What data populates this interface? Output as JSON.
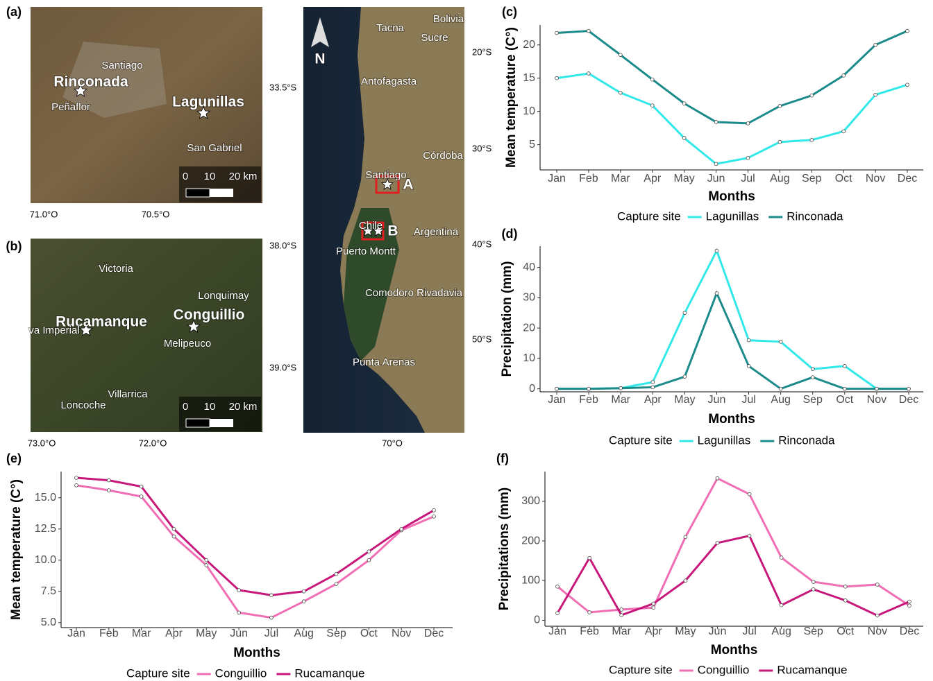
{
  "panel_labels": [
    "(a)",
    "(b)",
    "(c)",
    "(d)",
    "(e)",
    "(f)"
  ],
  "maps": [
    {
      "labels": [
        "Santiago",
        "Rinconada",
        "Peñaflor",
        "Lagunillas",
        "San Gabriel",
        "0",
        "10",
        "20 km",
        "33.5°S",
        "71.0°O",
        "70.5°O"
      ]
    },
    {
      "labels": [
        "Victoria",
        "Lonquimay",
        "Rucamanque",
        "Conguillio",
        "va Imperial",
        "Melipeuco",
        "Villarrica",
        "Loncoche",
        "0",
        "10",
        "20 km",
        "38.0°S",
        "39.0°S",
        "73.0°O",
        "72.0°O"
      ]
    },
    {
      "labels": [
        "Bolivia",
        "Tacna",
        "Sucre",
        "Antofagasta",
        "Córdoba",
        "Santiago",
        "A",
        "Chile",
        "B",
        "Argentina",
        "Puerto Montt",
        "Comodoro Rivadavia",
        "Punta Arenas",
        "N",
        "20°S",
        "30°S",
        "40°S",
        "50°S",
        "70°O"
      ]
    }
  ],
  "chart_data": [
    {
      "type": "line",
      "x_label": "Months",
      "y_label": "Mean temperature (C°)",
      "legend_title": "Capture site",
      "categories": [
        "Jan",
        "Feb",
        "Mar",
        "Apr",
        "May",
        "Jun",
        "Jul",
        "Aug",
        "Sep",
        "Oct",
        "Nov",
        "Dec"
      ],
      "series": [
        {
          "name": "Lagunillas",
          "color": "#33e8e8",
          "values": [
            15,
            15.7,
            12.8,
            10.9,
            6,
            2.1,
            3,
            5.4,
            5.7,
            7,
            12.5,
            14
          ]
        },
        {
          "name": "Rinconada",
          "color": "#1a8a8a",
          "values": [
            21.8,
            22.1,
            18.5,
            14.8,
            11.2,
            8.4,
            8.2,
            10.8,
            12.4,
            15.4,
            20,
            22.1
          ]
        }
      ],
      "ylim": [
        1.2,
        23
      ],
      "yticks": [
        5,
        10,
        15,
        20
      ]
    },
    {
      "type": "line",
      "x_label": "Months",
      "y_label": "Precipitation (mm)",
      "legend_title": "Capture site",
      "categories": [
        "Jan",
        "Feb",
        "Mar",
        "Apr",
        "May",
        "Jun",
        "Jul",
        "Aug",
        "Sep",
        "Oct",
        "Nov",
        "Dec"
      ],
      "series": [
        {
          "name": "Lagunillas",
          "color": "#33e8e8",
          "values": [
            0,
            0,
            0.2,
            2.2,
            25,
            45.5,
            16,
            15.5,
            6.5,
            7.5,
            0,
            0
          ]
        },
        {
          "name": "Rinconada",
          "color": "#1a8a8a",
          "values": [
            0,
            0,
            0.2,
            0.5,
            4,
            31.5,
            7.5,
            0,
            3.8,
            0,
            0,
            0
          ]
        }
      ],
      "ylim": [
        -1,
        47
      ],
      "yticks": [
        0,
        10,
        20,
        30,
        40
      ]
    },
    {
      "type": "line",
      "x_label": "Months",
      "y_label": "Mean temperature (C°)",
      "legend_title": "Capture site",
      "categories": [
        "Jan",
        "Feb",
        "Mar",
        "Apr",
        "May",
        "Jun",
        "Jul",
        "Aug",
        "Sep",
        "Oct",
        "Nov",
        "Dec"
      ],
      "series": [
        {
          "name": "Conguillio",
          "color": "#f06eb4",
          "values": [
            16.0,
            15.6,
            15.1,
            11.9,
            9.6,
            5.8,
            5.4,
            6.7,
            8.1,
            10.0,
            12.4,
            13.5
          ]
        },
        {
          "name": "Rucamanque",
          "color": "#c8177a",
          "values": [
            16.6,
            16.4,
            15.9,
            12.5,
            10.0,
            7.6,
            7.2,
            7.5,
            8.9,
            10.7,
            12.5,
            14.0
          ]
        }
      ],
      "ylim": [
        4.6,
        17.1
      ],
      "yticks": [
        {
          "value": 5,
          "label": "5.0"
        },
        {
          "value": 7.5,
          "label": "7.5"
        },
        {
          "value": 10,
          "label": "10.0"
        },
        {
          "value": 12.5,
          "label": "12.5"
        },
        {
          "value": 15,
          "label": "15.0"
        }
      ]
    },
    {
      "type": "line",
      "x_label": "Months",
      "y_label": "Precipitations (mm)",
      "legend_title": "Capture site",
      "categories": [
        "Jan",
        "Feb",
        "Mar",
        "Apr",
        "May",
        "Jun",
        "Jul",
        "Aug",
        "Sep",
        "Oct",
        "Nov",
        "Dec"
      ],
      "series": [
        {
          "name": "Conguillio",
          "color": "#f06eb4",
          "values": [
            85,
            20,
            27,
            32,
            210,
            358,
            318,
            158,
            97,
            85,
            90,
            37
          ]
        },
        {
          "name": "Rucamanque",
          "color": "#c8177a",
          "values": [
            18,
            157,
            13,
            42,
            100,
            195,
            213,
            38,
            78,
            50,
            12,
            47
          ]
        }
      ],
      "ylim": [
        -15,
        375
      ],
      "yticks": [
        0,
        100,
        200,
        300
      ]
    }
  ]
}
